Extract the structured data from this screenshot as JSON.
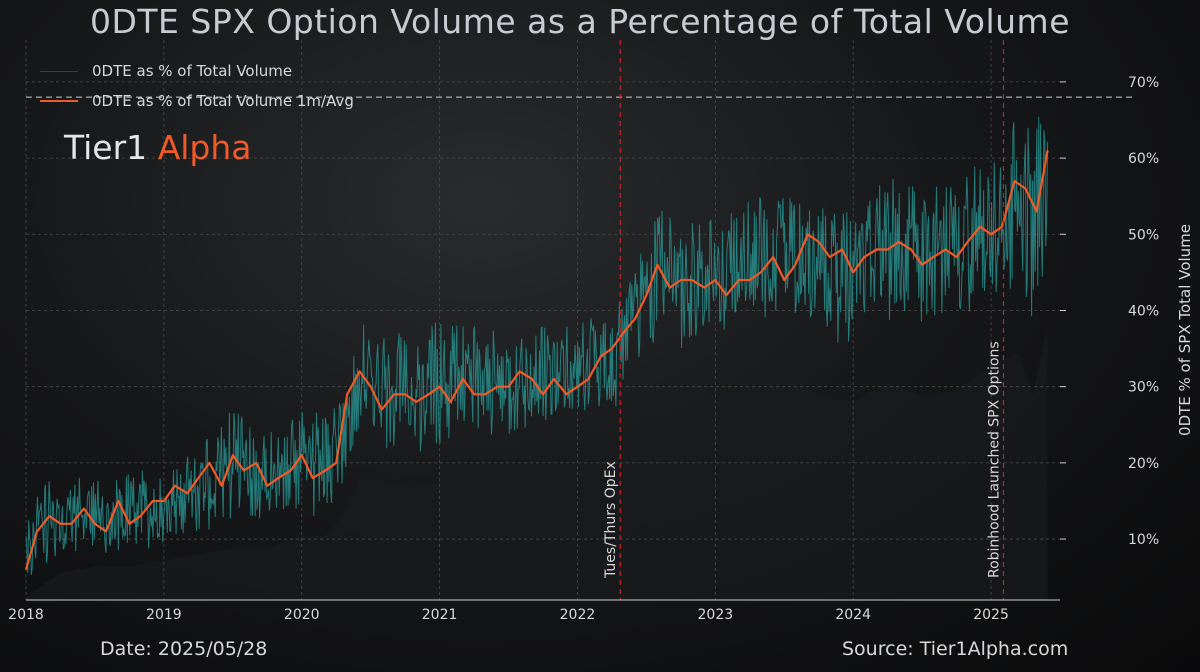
{
  "title": "0DTE SPX Option Volume as a Percentage of Total Volume",
  "brand": {
    "part1": "Tier1",
    "part2": "Alpha"
  },
  "footer": {
    "date": "Date: 2025/05/28",
    "source": "Source: Tier1Alpha.com"
  },
  "colors": {
    "daily": "#2a9c9a",
    "avg": "#f05a28",
    "background": "#0c0c0d",
    "grid": "#4a4a4a",
    "event": "#d11f1f"
  },
  "chart_data": {
    "type": "line",
    "title": "0DTE SPX Option Volume as a Percentage of Total Volume",
    "xlabel": "",
    "ylabel": "0DTE % of SPX Total Volume",
    "xlim": [
      2018.0,
      2025.5
    ],
    "ylim": [
      0.02,
      0.755
    ],
    "x_ticks": [
      2018,
      2019,
      2020,
      2021,
      2022,
      2023,
      2024,
      2025
    ],
    "x_tick_labels": [
      "2018",
      "2019",
      "2020",
      "2021",
      "2022",
      "2023",
      "2024",
      "2025"
    ],
    "y_ticks": [
      0.1,
      0.2,
      0.3,
      0.4,
      0.5,
      0.6,
      0.7
    ],
    "y_tick_labels": [
      "10%",
      "20%",
      "30%",
      "40%",
      "50%",
      "60%",
      "70%"
    ],
    "grid": true,
    "legend_position": "top-left",
    "reference_line": 0.68,
    "events": [
      {
        "x": 2022.31,
        "label": "Tues/Thurs OpEx"
      },
      {
        "x": 2025.09,
        "label": "Robinhood Launched SPX Options"
      }
    ],
    "series": [
      {
        "name": "0DTE as % of Total Volume",
        "style": "daily-band",
        "x": [
          2018.0,
          2018.25,
          2018.5,
          2018.75,
          2019.0,
          2019.25,
          2019.5,
          2019.75,
          2020.0,
          2020.17,
          2020.25,
          2020.42,
          2020.6,
          2020.8,
          2021.0,
          2021.25,
          2021.5,
          2021.75,
          2022.0,
          2022.15,
          2022.31,
          2022.5,
          2022.62,
          2022.75,
          2023.0,
          2023.25,
          2023.5,
          2023.75,
          2024.0,
          2024.25,
          2024.5,
          2024.75,
          2025.0,
          2025.09,
          2025.2,
          2025.3,
          2025.41
        ],
        "low": [
          0.03,
          0.07,
          0.08,
          0.08,
          0.09,
          0.1,
          0.11,
          0.11,
          0.13,
          0.13,
          0.15,
          0.22,
          0.22,
          0.21,
          0.22,
          0.23,
          0.22,
          0.24,
          0.25,
          0.25,
          0.27,
          0.33,
          0.37,
          0.34,
          0.36,
          0.38,
          0.4,
          0.36,
          0.35,
          0.38,
          0.36,
          0.37,
          0.41,
          0.42,
          0.43,
          0.36,
          0.47
        ],
        "high": [
          0.16,
          0.19,
          0.18,
          0.19,
          0.19,
          0.22,
          0.28,
          0.24,
          0.28,
          0.26,
          0.29,
          0.4,
          0.38,
          0.37,
          0.39,
          0.38,
          0.37,
          0.38,
          0.38,
          0.4,
          0.43,
          0.5,
          0.54,
          0.53,
          0.52,
          0.55,
          0.55,
          0.54,
          0.53,
          0.58,
          0.56,
          0.57,
          0.61,
          0.63,
          0.66,
          0.64,
          0.68
        ]
      },
      {
        "name": "0DTE as % of Total Volume 1m/Avg",
        "style": "line",
        "x": [
          2018.0,
          2018.08,
          2018.17,
          2018.25,
          2018.33,
          2018.42,
          2018.5,
          2018.58,
          2018.67,
          2018.75,
          2018.83,
          2018.92,
          2019.0,
          2019.08,
          2019.17,
          2019.25,
          2019.33,
          2019.42,
          2019.5,
          2019.58,
          2019.67,
          2019.75,
          2019.83,
          2019.92,
          2020.0,
          2020.08,
          2020.17,
          2020.25,
          2020.33,
          2020.42,
          2020.5,
          2020.58,
          2020.67,
          2020.75,
          2020.83,
          2020.92,
          2021.0,
          2021.08,
          2021.17,
          2021.25,
          2021.33,
          2021.42,
          2021.5,
          2021.58,
          2021.67,
          2021.75,
          2021.83,
          2021.92,
          2022.0,
          2022.08,
          2022.17,
          2022.25,
          2022.33,
          2022.42,
          2022.5,
          2022.58,
          2022.67,
          2022.75,
          2022.83,
          2022.92,
          2023.0,
          2023.08,
          2023.17,
          2023.25,
          2023.33,
          2023.42,
          2023.5,
          2023.58,
          2023.67,
          2023.75,
          2023.83,
          2023.92,
          2024.0,
          2024.08,
          2024.17,
          2024.25,
          2024.33,
          2024.42,
          2024.5,
          2024.58,
          2024.67,
          2024.75,
          2024.83,
          2024.92,
          2025.0,
          2025.08,
          2025.17,
          2025.25,
          2025.33,
          2025.41
        ],
        "y": [
          0.06,
          0.11,
          0.13,
          0.12,
          0.12,
          0.14,
          0.12,
          0.11,
          0.15,
          0.12,
          0.13,
          0.15,
          0.15,
          0.17,
          0.16,
          0.18,
          0.2,
          0.17,
          0.21,
          0.19,
          0.2,
          0.17,
          0.18,
          0.19,
          0.21,
          0.18,
          0.19,
          0.2,
          0.29,
          0.32,
          0.3,
          0.27,
          0.29,
          0.29,
          0.28,
          0.29,
          0.3,
          0.28,
          0.31,
          0.29,
          0.29,
          0.3,
          0.3,
          0.32,
          0.31,
          0.29,
          0.31,
          0.29,
          0.3,
          0.31,
          0.34,
          0.35,
          0.37,
          0.39,
          0.42,
          0.46,
          0.43,
          0.44,
          0.44,
          0.43,
          0.44,
          0.42,
          0.44,
          0.44,
          0.45,
          0.47,
          0.44,
          0.46,
          0.5,
          0.49,
          0.47,
          0.48,
          0.45,
          0.47,
          0.48,
          0.48,
          0.49,
          0.48,
          0.46,
          0.47,
          0.48,
          0.47,
          0.49,
          0.51,
          0.5,
          0.51,
          0.57,
          0.56,
          0.53,
          0.61
        ]
      }
    ]
  }
}
